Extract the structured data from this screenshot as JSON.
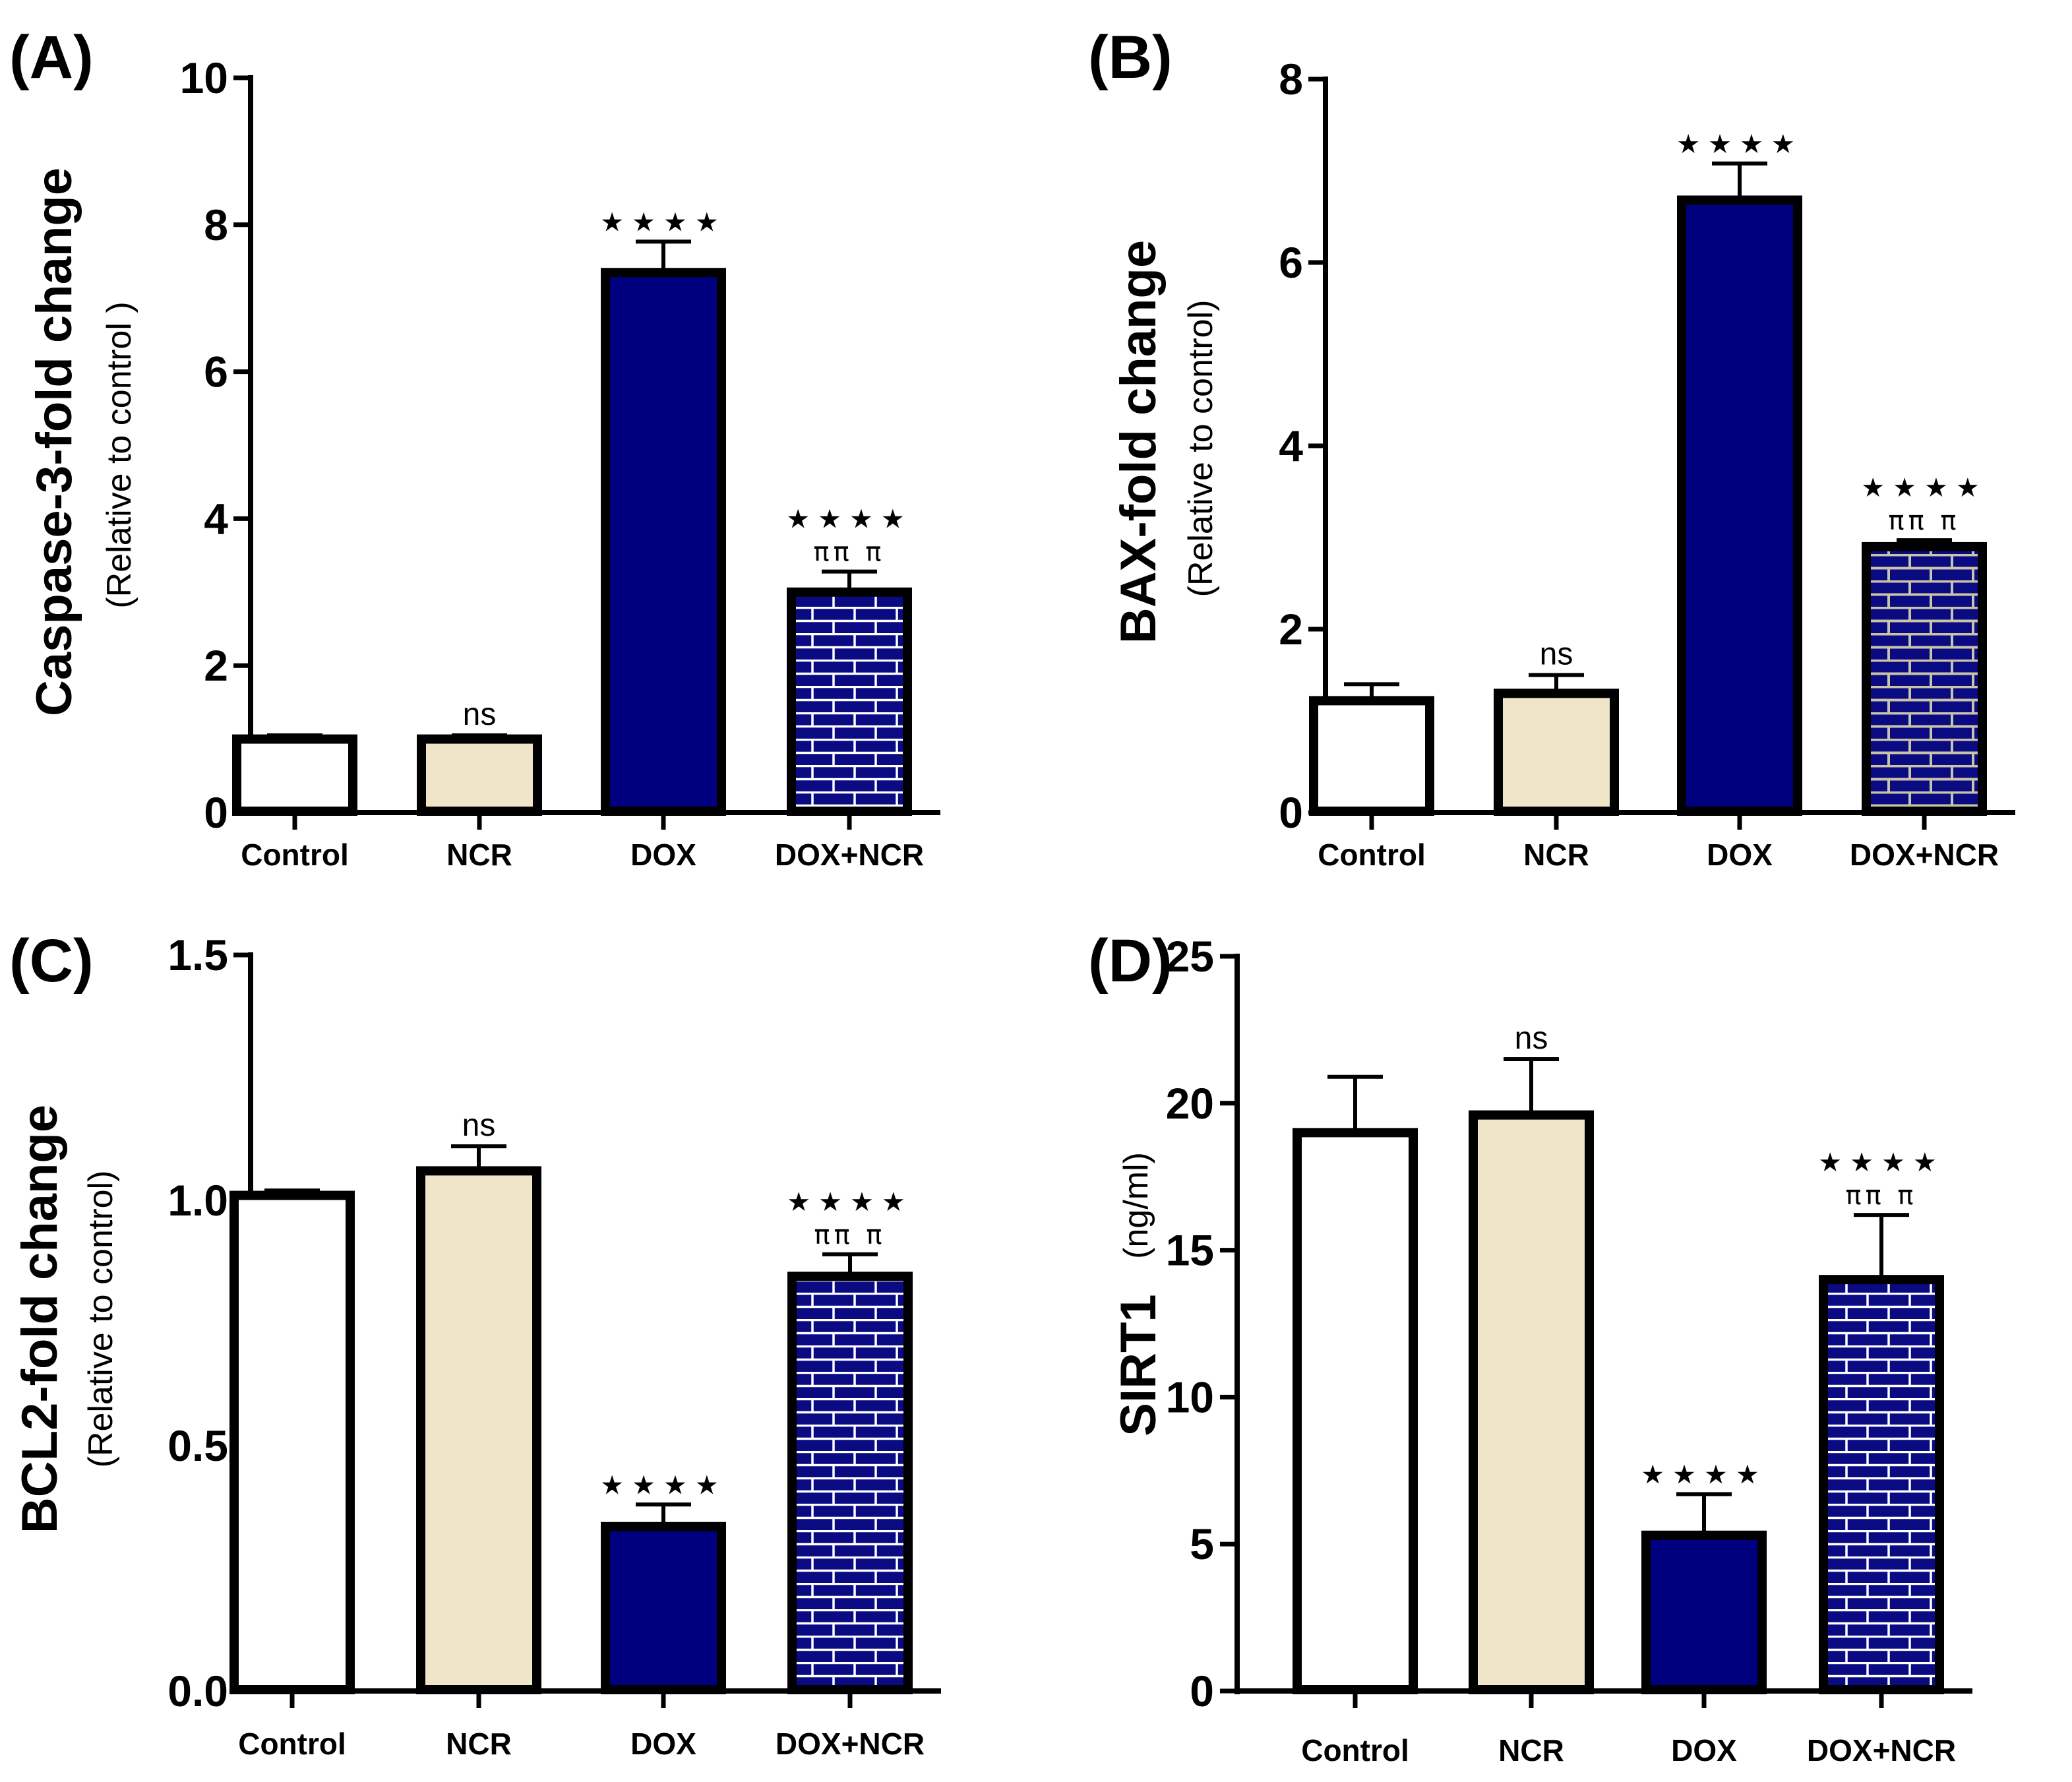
{
  "colors": {
    "control": "#ffffff",
    "ncr": "#efe6c9",
    "dox": "#00007f",
    "brick": "#0a0a82",
    "mortar": "#ffffff",
    "stroke": "#000000"
  },
  "chart_data": [
    {
      "type": "bar",
      "panel": "(A)",
      "ylabel": "Caspase-3-fold change",
      "ylabel_sub": "(Relative to control )",
      "ylim": [
        0,
        10
      ],
      "yticks": [
        "0",
        "2",
        "4",
        "6",
        "8",
        "10"
      ],
      "ytick_values": [
        0,
        2,
        4,
        6,
        8,
        10
      ],
      "categories": [
        "Control",
        "NCR",
        "DOX",
        "DOX+NCR"
      ],
      "values": [
        1.0,
        1.0,
        7.35,
        3.0
      ],
      "errors": [
        0.05,
        0.05,
        0.42,
        0.28
      ],
      "fills": [
        "control",
        "ncr",
        "dox",
        "brick"
      ],
      "annotations": [
        [],
        [
          "ns"
        ],
        [
          "★★★★"
        ],
        [
          "ππ π",
          "★★★★"
        ]
      ]
    },
    {
      "type": "bar",
      "panel": "(B)",
      "ylabel": "BAX-fold change",
      "ylabel_sub": "(Relative to control)",
      "ylim": [
        0,
        8
      ],
      "yticks": [
        "0",
        "2",
        "4",
        "6",
        "8"
      ],
      "ytick_values": [
        0,
        2,
        4,
        6,
        8
      ],
      "categories": [
        "Control",
        "NCR",
        "DOX",
        "DOX+NCR"
      ],
      "values": [
        1.22,
        1.3,
        6.68,
        2.9
      ],
      "errors": [
        0.18,
        0.2,
        0.4,
        0.07
      ],
      "fills": [
        "control",
        "ncr",
        "dox",
        "brick-beige"
      ],
      "annotations": [
        [],
        [
          "ns"
        ],
        [
          "★★★★"
        ],
        [
          "ππ π",
          "★★★★"
        ]
      ]
    },
    {
      "type": "bar",
      "panel": "(C)",
      "ylabel": "BCL2-fold change",
      "ylabel_sub": "(Relative to control)",
      "ylim": [
        0,
        1.5
      ],
      "yticks": [
        "0.0",
        "0.5",
        "1.0",
        "1.5"
      ],
      "ytick_values": [
        0,
        0.5,
        1.0,
        1.5
      ],
      "categories": [
        "Control",
        "NCR",
        "DOX",
        "DOX+NCR"
      ],
      "values": [
        1.01,
        1.06,
        0.335,
        0.845
      ],
      "errors": [
        0.01,
        0.05,
        0.045,
        0.045
      ],
      "fills": [
        "control",
        "ncr",
        "dox",
        "brick"
      ],
      "annotations": [
        [],
        [
          "ns"
        ],
        [
          "★★★★"
        ],
        [
          "ππ π",
          "★★★★"
        ]
      ]
    },
    {
      "type": "bar",
      "panel": "(D)",
      "ylabel": "SIRT1",
      "ylabel_sub": "(ng/ml)",
      "ylim": [
        0,
        25
      ],
      "yticks": [
        "0",
        "5",
        "10",
        "15",
        "20",
        "25"
      ],
      "ytick_values": [
        0,
        5,
        10,
        15,
        20,
        25
      ],
      "categories": [
        "Control",
        "NCR",
        "DOX",
        "DOX+NCR"
      ],
      "values": [
        19.0,
        19.6,
        5.3,
        14.0
      ],
      "errors": [
        1.9,
        1.9,
        1.4,
        2.2
      ],
      "fills": [
        "control",
        "ncr",
        "dox",
        "brick"
      ],
      "annotations": [
        [],
        [
          "ns"
        ],
        [
          "★★★★"
        ],
        [
          "ππ π",
          "★★★★"
        ]
      ]
    }
  ]
}
